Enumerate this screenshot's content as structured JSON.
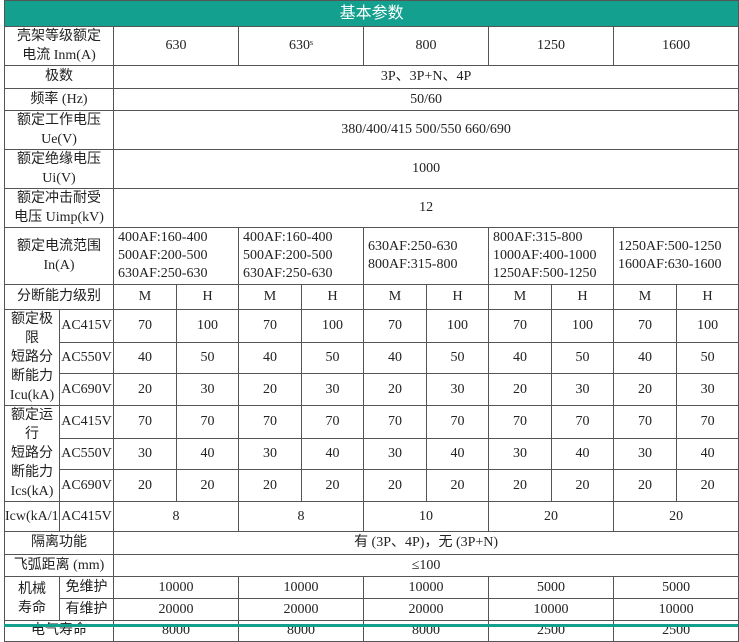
{
  "title": "基本参数",
  "frame": {
    "label": "壳架等级额定\n电流 Inm(A)",
    "values": [
      "630",
      "630ˢ",
      "800",
      "1250",
      "1600"
    ]
  },
  "poles": {
    "label": "极数",
    "value": "3P、3P+N、4P"
  },
  "frequency": {
    "label": "频率 (Hz)",
    "value": "50/60"
  },
  "ue": {
    "label": "额定工作电压\nUe(V)",
    "value": "380/400/415    500/550    660/690"
  },
  "ui": {
    "label": "额定绝缘电压\nUi(V)",
    "value": "1000"
  },
  "uimp": {
    "label": "额定冲击耐受\n电压 Uimp(kV)",
    "value": "12"
  },
  "in_range": {
    "label": "额定电流范围\nIn(A)",
    "values": [
      "400AF:160-400\n500AF:200-500\n630AF:250-630",
      "400AF:160-400\n500AF:200-500\n630AF:250-630",
      "630AF:250-630\n800AF:315-800",
      "800AF:315-800\n1000AF:400-1000\n1250AF:500-1250",
      "1250AF:500-1250\n1600AF:630-1600"
    ]
  },
  "breaking_level": {
    "label": "分断能力级别",
    "values": [
      "M",
      "H",
      "M",
      "H",
      "M",
      "H",
      "M",
      "H",
      "M",
      "H"
    ]
  },
  "icu": {
    "label": "额定极限\n短路分\n断能力\nIcu(kA)",
    "rows": [
      {
        "voltage": "AC415V",
        "values": [
          "70",
          "100",
          "70",
          "100",
          "70",
          "100",
          "70",
          "100",
          "70",
          "100"
        ]
      },
      {
        "voltage": "AC550V",
        "values": [
          "40",
          "50",
          "40",
          "50",
          "40",
          "50",
          "40",
          "50",
          "40",
          "50"
        ]
      },
      {
        "voltage": "AC690V",
        "values": [
          "20",
          "30",
          "20",
          "30",
          "20",
          "30",
          "20",
          "30",
          "20",
          "30"
        ]
      }
    ]
  },
  "ics": {
    "label": "额定运行\n短路分\n断能力\nIcs(kA)",
    "rows": [
      {
        "voltage": "AC415V",
        "values": [
          "70",
          "70",
          "70",
          "70",
          "70",
          "70",
          "70",
          "70",
          "70",
          "70"
        ]
      },
      {
        "voltage": "AC550V",
        "values": [
          "30",
          "40",
          "30",
          "40",
          "30",
          "40",
          "30",
          "40",
          "30",
          "40"
        ]
      },
      {
        "voltage": "AC690V",
        "values": [
          "20",
          "20",
          "20",
          "20",
          "20",
          "20",
          "20",
          "20",
          "20",
          "20"
        ]
      }
    ]
  },
  "icw": {
    "label": "Icw(kA/1s)",
    "voltage": "AC415V",
    "values": [
      "8",
      "8",
      "10",
      "20",
      "20"
    ]
  },
  "isolation": {
    "label": "隔离功能",
    "value": "有 (3P、4P)，无 (3P+N)"
  },
  "arc": {
    "label": "飞弧距离 (mm)",
    "value": "≤100"
  },
  "mech": {
    "label": "机械\n寿命",
    "rows": [
      {
        "type": "免维护",
        "values": [
          "10000",
          "10000",
          "10000",
          "5000",
          "5000"
        ]
      },
      {
        "type": "有维护",
        "values": [
          "20000",
          "20000",
          "20000",
          "10000",
          "10000"
        ]
      }
    ]
  },
  "electrical": {
    "label": "电气寿命",
    "values": [
      "8000",
      "8000",
      "8000",
      "2500",
      "2500"
    ]
  },
  "colors": {
    "header_bg": "#13a08f",
    "border": "#555555"
  }
}
